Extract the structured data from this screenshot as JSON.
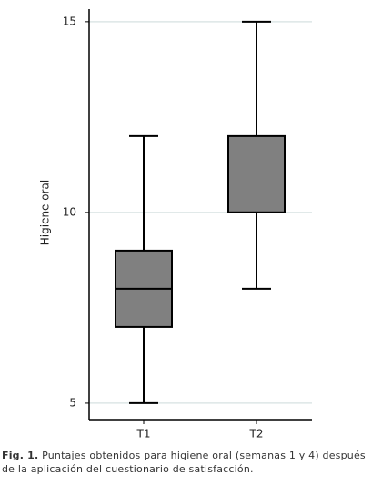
{
  "chart_data": {
    "type": "box",
    "y_label": "Higiene oral",
    "categories": [
      "T1",
      "T2"
    ],
    "boxes": [
      {
        "min": 5,
        "q1": 7,
        "median": 8,
        "q3": 9,
        "max": 12
      },
      {
        "min": 8,
        "q1": 10,
        "median": 10,
        "q3": 12,
        "max": 15
      }
    ],
    "color": "#808080",
    "ylim": [
      4.57,
      15.33
    ],
    "yticks": [
      5,
      10,
      15
    ],
    "grid": true,
    "caption_label": "Fig. 1.",
    "caption": "Puntajes obtenidos para higiene oral (semanas 1 y 4) después de la aplicación del cuestionario de satisfacción."
  }
}
